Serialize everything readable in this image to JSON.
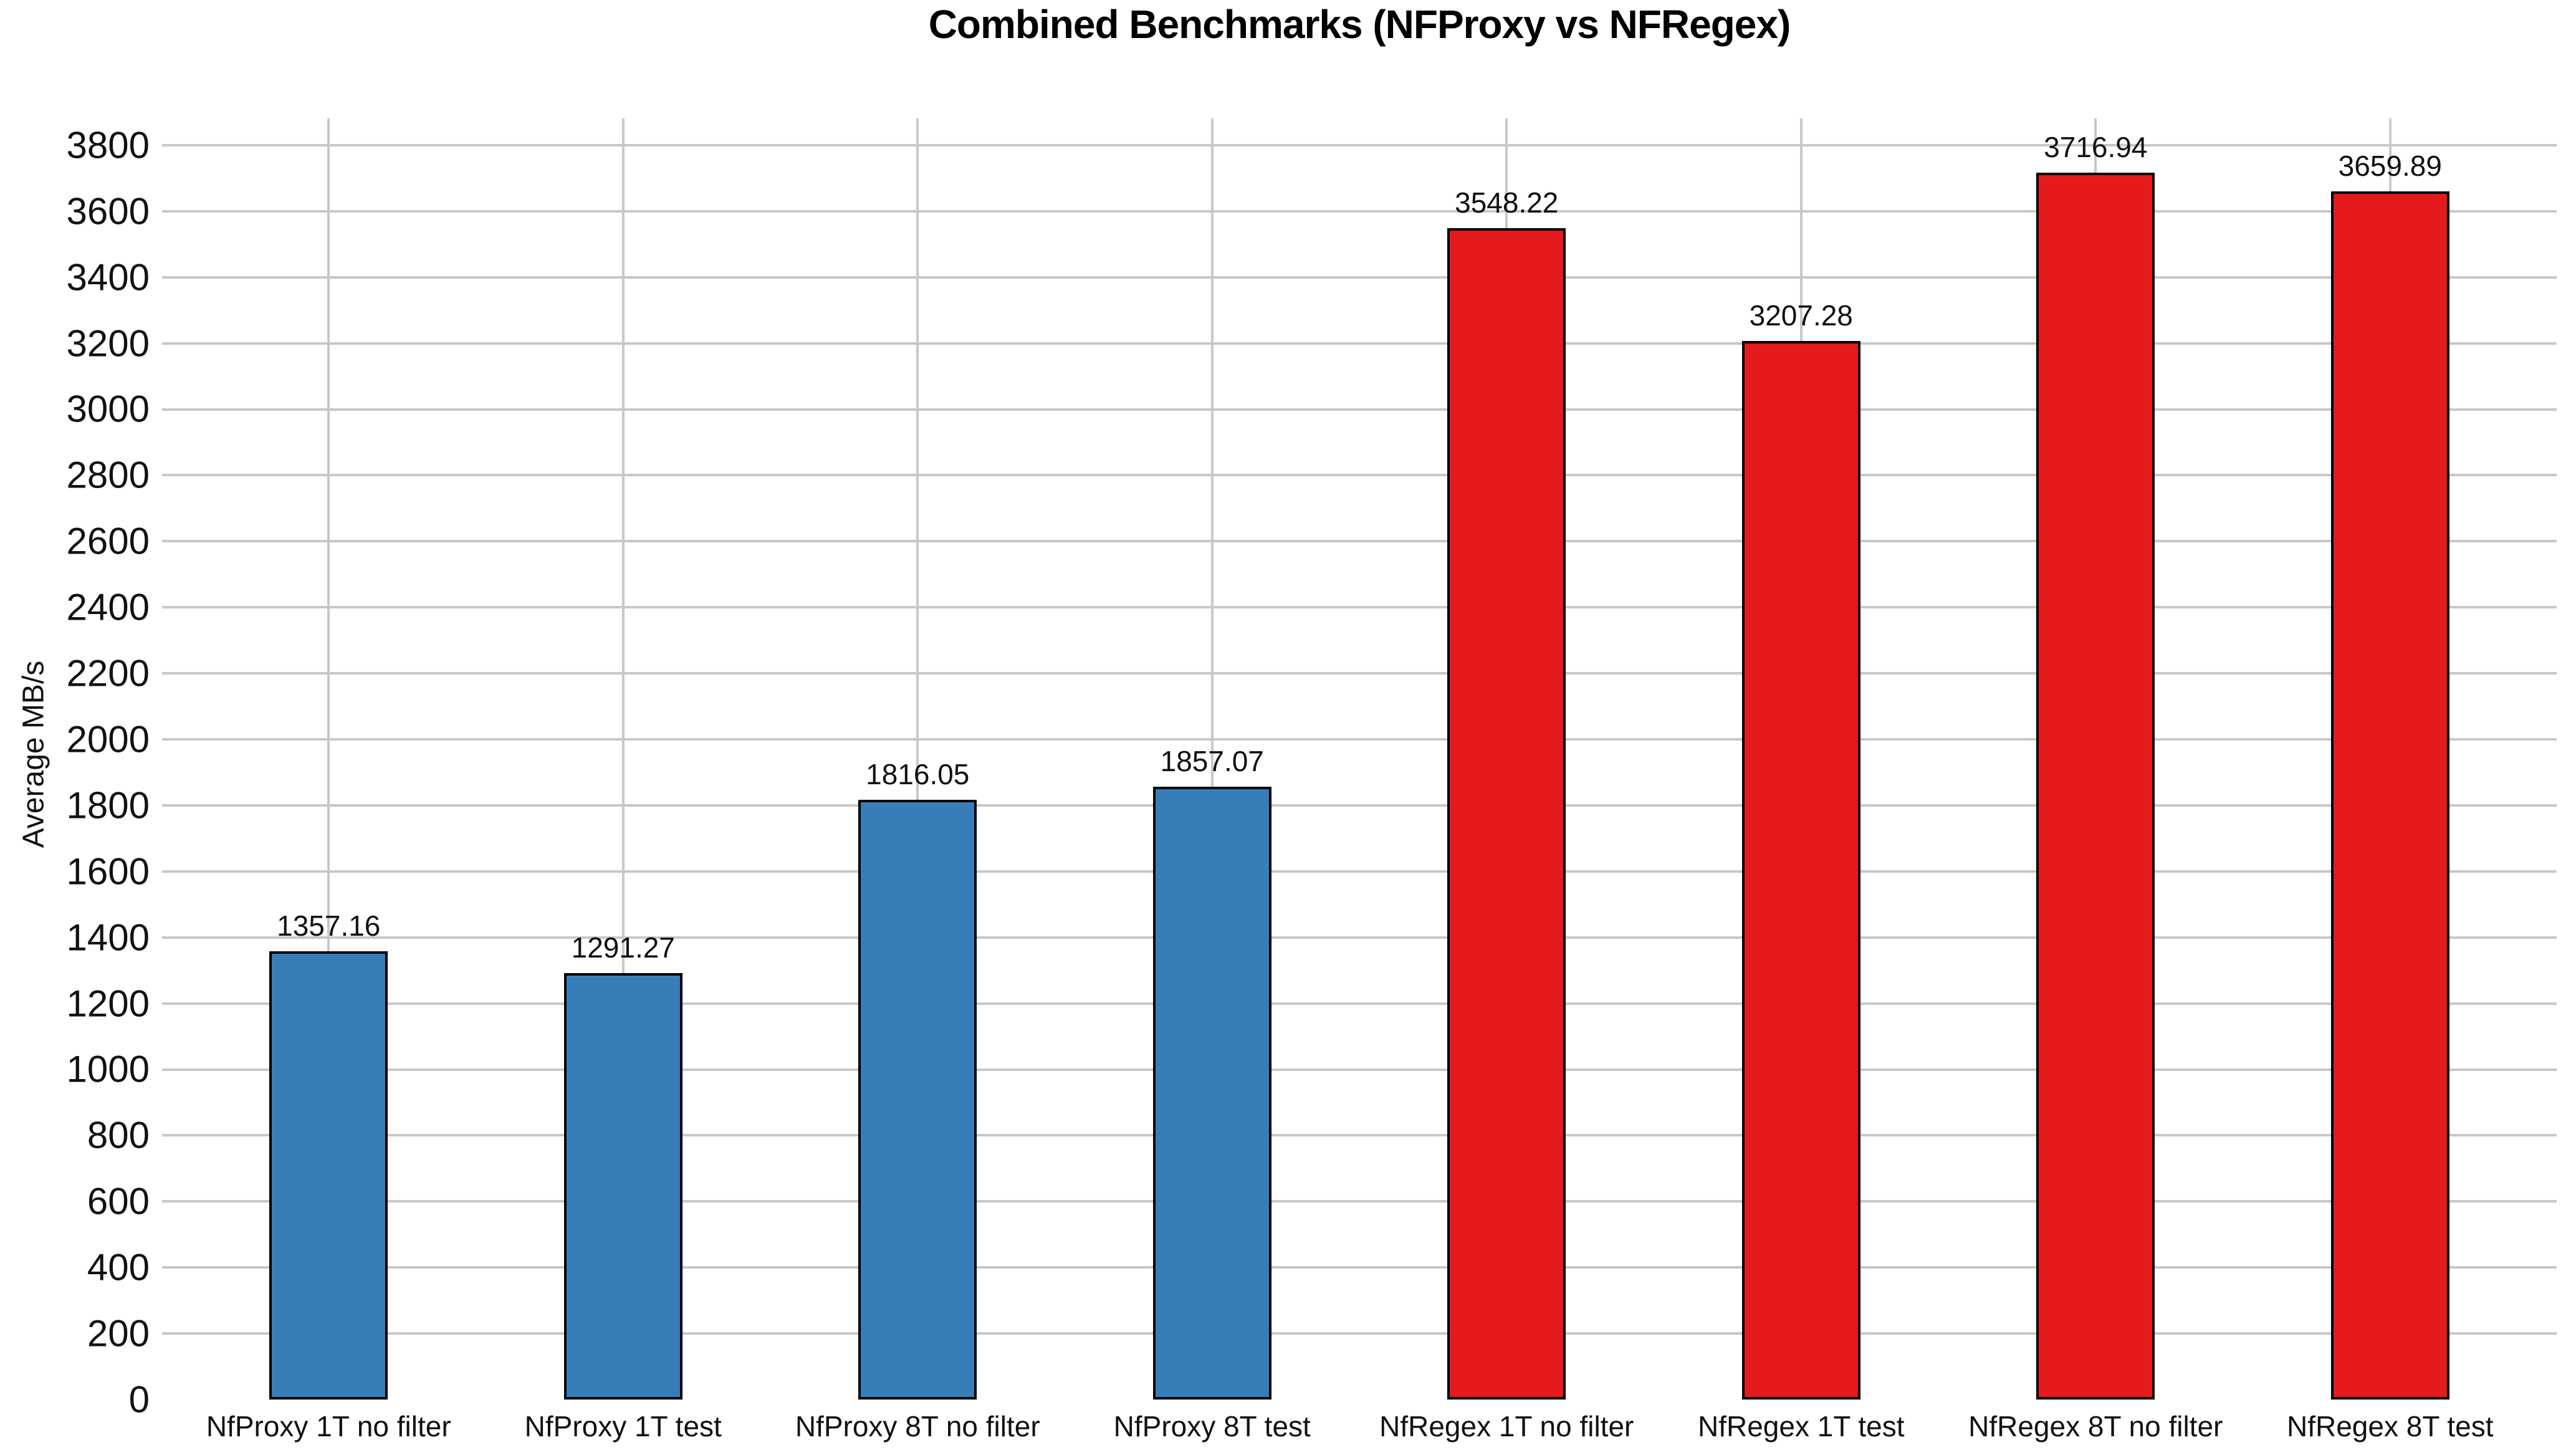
{
  "chart_data": {
    "type": "bar",
    "title": "Combined Benchmarks (NFProxy vs NFRegex)",
    "ylabel": "Average MB/s",
    "xlabel": "",
    "categories": [
      "NfProxy 1T no filter",
      "NfProxy 1T test",
      "NfProxy 8T no filter",
      "NfProxy 8T test",
      "NfRegex 1T no filter",
      "NfRegex 1T test",
      "NfRegex 8T no filter",
      "NfRegex 8T test"
    ],
    "values": [
      1357.16,
      1291.27,
      1816.05,
      1857.07,
      3548.22,
      3207.28,
      3716.94,
      3659.89
    ],
    "value_labels": [
      "1357.16",
      "1291.27",
      "1816.05",
      "1857.07",
      "3548.22",
      "3207.28",
      "3716.94",
      "3659.89"
    ],
    "bar_colors": [
      "#377eb8",
      "#377eb8",
      "#377eb8",
      "#377eb8",
      "#e41a1c",
      "#e41a1c",
      "#e41a1c",
      "#e41a1c"
    ],
    "yticks": [
      0,
      200,
      400,
      600,
      800,
      1000,
      1200,
      1400,
      1600,
      1800,
      2000,
      2200,
      2400,
      2600,
      2800,
      3000,
      3200,
      3400,
      3600,
      3800
    ],
    "ylim": [
      0,
      3881
    ],
    "grid": true,
    "legend": "none"
  },
  "style": {
    "bar_edge_color": "#000000",
    "grid_color": "#c8c8c8",
    "text_color": "#111111",
    "background": "#ffffff"
  }
}
